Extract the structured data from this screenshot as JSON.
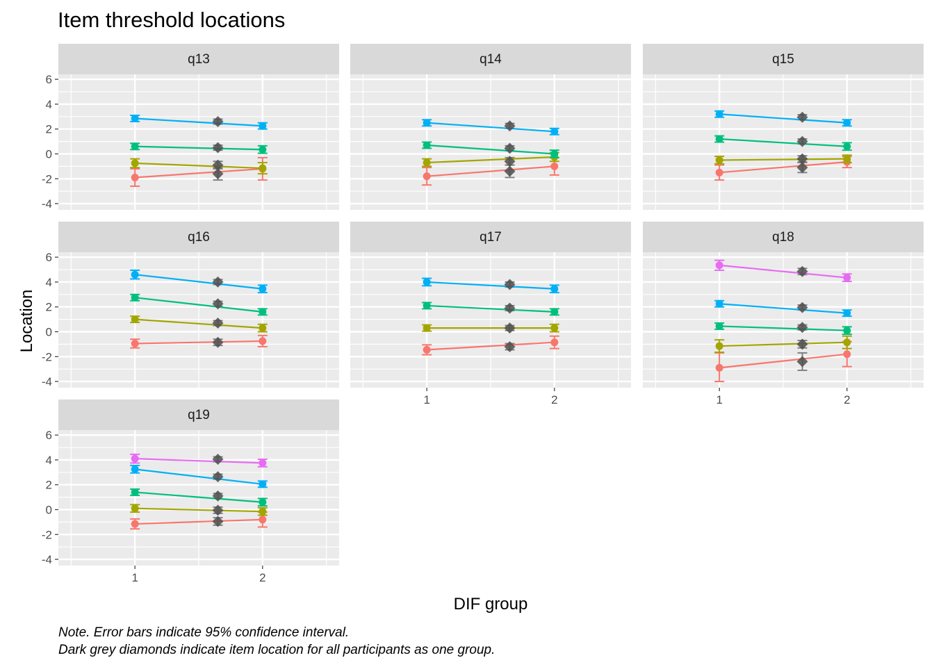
{
  "chart_data": {
    "type": "line",
    "title": "Item threshold locations",
    "xlabel": "DIF group",
    "ylabel": "Location",
    "x_ticks": [
      "1",
      "2"
    ],
    "x_range": [
      0.4,
      2.6
    ],
    "y_ticks": [
      -4,
      -2,
      0,
      2,
      4,
      6
    ],
    "ylim": [
      -4.5,
      6.4
    ],
    "grid": true,
    "legend": "none",
    "caption": [
      "Note. Error bars indicate 95% confidence interval.",
      "Dark grey diamonds indicate item location for all participants as one group."
    ],
    "threshold_colors": [
      "#F8766D",
      "#A3A500",
      "#00BF7D",
      "#00B0F6",
      "#E76BF3"
    ],
    "overall_color": "#4D4D4D",
    "panels": [
      {
        "name": "q13",
        "thresholds": [
          {
            "g1": -1.9,
            "g1_lo": -2.6,
            "g1_hi": -1.2,
            "g2": -1.2,
            "g2_lo": -2.1,
            "g2_hi": -0.3,
            "overall": -1.6,
            "overall_lo": -2.1,
            "overall_hi": -1.1
          },
          {
            "g1": -0.75,
            "g1_lo": -1.1,
            "g1_hi": -0.4,
            "g2": -1.15,
            "g2_lo": -1.6,
            "g2_hi": -0.7,
            "overall": -0.9,
            "overall_lo": -1.2,
            "overall_hi": -0.6
          },
          {
            "g1": 0.6,
            "g1_lo": 0.35,
            "g1_hi": 0.85,
            "g2": 0.35,
            "g2_lo": 0.05,
            "g2_hi": 0.65,
            "overall": 0.5,
            "overall_lo": 0.3,
            "overall_hi": 0.7
          },
          {
            "g1": 2.85,
            "g1_lo": 2.6,
            "g1_hi": 3.1,
            "g2": 2.25,
            "g2_lo": 2.0,
            "g2_hi": 2.5,
            "overall": 2.6,
            "overall_lo": 2.4,
            "overall_hi": 2.8
          }
        ]
      },
      {
        "name": "q14",
        "thresholds": [
          {
            "g1": -1.8,
            "g1_lo": -2.5,
            "g1_hi": -1.1,
            "g2": -1.0,
            "g2_lo": -1.7,
            "g2_hi": -0.3,
            "overall": -1.4,
            "overall_lo": -1.9,
            "overall_hi": -0.9
          },
          {
            "g1": -0.7,
            "g1_lo": -1.0,
            "g1_hi": -0.4,
            "g2": -0.25,
            "g2_lo": -0.6,
            "g2_hi": 0.1,
            "overall": -0.6,
            "overall_lo": -0.9,
            "overall_hi": -0.3
          },
          {
            "g1": 0.7,
            "g1_lo": 0.45,
            "g1_hi": 0.95,
            "g2": 0.0,
            "g2_lo": -0.3,
            "g2_hi": 0.3,
            "overall": 0.45,
            "overall_lo": 0.25,
            "overall_hi": 0.65
          },
          {
            "g1": 2.5,
            "g1_lo": 2.25,
            "g1_hi": 2.75,
            "g2": 1.8,
            "g2_lo": 1.55,
            "g2_hi": 2.05,
            "overall": 2.25,
            "overall_lo": 2.05,
            "overall_hi": 2.45
          }
        ]
      },
      {
        "name": "q15",
        "thresholds": [
          {
            "g1": -1.5,
            "g1_lo": -2.1,
            "g1_hi": -0.9,
            "g2": -0.65,
            "g2_lo": -1.1,
            "g2_hi": -0.2,
            "overall": -1.1,
            "overall_lo": -1.5,
            "overall_hi": -0.7
          },
          {
            "g1": -0.5,
            "g1_lo": -0.8,
            "g1_hi": -0.2,
            "g2": -0.4,
            "g2_lo": -0.7,
            "g2_hi": -0.1,
            "overall": -0.4,
            "overall_lo": -0.65,
            "overall_hi": -0.15
          },
          {
            "g1": 1.2,
            "g1_lo": 0.95,
            "g1_hi": 1.45,
            "g2": 0.6,
            "g2_lo": 0.3,
            "g2_hi": 0.9,
            "overall": 1.0,
            "overall_lo": 0.8,
            "overall_hi": 1.2
          },
          {
            "g1": 3.2,
            "g1_lo": 2.95,
            "g1_hi": 3.45,
            "g2": 2.5,
            "g2_lo": 2.25,
            "g2_hi": 2.75,
            "overall": 2.95,
            "overall_lo": 2.75,
            "overall_hi": 3.15
          }
        ]
      },
      {
        "name": "q16",
        "thresholds": [
          {
            "g1": -0.95,
            "g1_lo": -1.3,
            "g1_hi": -0.6,
            "g2": -0.75,
            "g2_lo": -1.2,
            "g2_hi": -0.3,
            "overall": -0.85,
            "overall_lo": -1.1,
            "overall_hi": -0.6
          },
          {
            "g1": 1.0,
            "g1_lo": 0.75,
            "g1_hi": 1.25,
            "g2": 0.3,
            "g2_lo": 0.0,
            "g2_hi": 0.6,
            "overall": 0.7,
            "overall_lo": 0.5,
            "overall_hi": 0.9
          },
          {
            "g1": 2.75,
            "g1_lo": 2.5,
            "g1_hi": 3.0,
            "g2": 1.6,
            "g2_lo": 1.35,
            "g2_hi": 1.85,
            "overall": 2.25,
            "overall_lo": 2.05,
            "overall_hi": 2.45
          },
          {
            "g1": 4.6,
            "g1_lo": 4.25,
            "g1_hi": 4.95,
            "g2": 3.45,
            "g2_lo": 3.15,
            "g2_hi": 3.75,
            "overall": 4.0,
            "overall_lo": 3.8,
            "overall_hi": 4.2
          }
        ]
      },
      {
        "name": "q17",
        "thresholds": [
          {
            "g1": -1.45,
            "g1_lo": -1.85,
            "g1_hi": -1.05,
            "g2": -0.85,
            "g2_lo": -1.35,
            "g2_hi": -0.35,
            "overall": -1.2,
            "overall_lo": -1.45,
            "overall_hi": -0.95
          },
          {
            "g1": 0.3,
            "g1_lo": 0.05,
            "g1_hi": 0.55,
            "g2": 0.3,
            "g2_lo": 0.0,
            "g2_hi": 0.6,
            "overall": 0.3,
            "overall_lo": 0.1,
            "overall_hi": 0.5
          },
          {
            "g1": 2.1,
            "g1_lo": 1.85,
            "g1_hi": 2.35,
            "g2": 1.6,
            "g2_lo": 1.35,
            "g2_hi": 1.85,
            "overall": 1.9,
            "overall_lo": 1.7,
            "overall_hi": 2.1
          },
          {
            "g1": 4.0,
            "g1_lo": 3.7,
            "g1_hi": 4.3,
            "g2": 3.45,
            "g2_lo": 3.15,
            "g2_hi": 3.75,
            "overall": 3.8,
            "overall_lo": 3.6,
            "overall_hi": 4.0
          }
        ]
      },
      {
        "name": "q18",
        "thresholds": [
          {
            "g1": -2.9,
            "g1_lo": -4.0,
            "g1_hi": -1.7,
            "g2": -1.8,
            "g2_lo": -2.8,
            "g2_hi": -0.8,
            "overall": -2.4,
            "overall_lo": -3.1,
            "overall_hi": -1.7
          },
          {
            "g1": -1.15,
            "g1_lo": -1.65,
            "g1_hi": -0.65,
            "g2": -0.85,
            "g2_lo": -1.35,
            "g2_hi": -0.35,
            "overall": -1.0,
            "overall_lo": -1.3,
            "overall_hi": -0.7
          },
          {
            "g1": 0.45,
            "g1_lo": 0.2,
            "g1_hi": 0.7,
            "g2": 0.1,
            "g2_lo": -0.2,
            "g2_hi": 0.4,
            "overall": 0.35,
            "overall_lo": 0.15,
            "overall_hi": 0.55
          },
          {
            "g1": 2.25,
            "g1_lo": 2.0,
            "g1_hi": 2.5,
            "g2": 1.5,
            "g2_lo": 1.25,
            "g2_hi": 1.75,
            "overall": 1.95,
            "overall_lo": 1.75,
            "overall_hi": 2.15
          },
          {
            "g1": 5.35,
            "g1_lo": 4.95,
            "g1_hi": 5.75,
            "g2": 4.35,
            "g2_lo": 4.05,
            "g2_hi": 4.65,
            "overall": 4.85,
            "overall_lo": 4.6,
            "overall_hi": 5.1
          }
        ]
      },
      {
        "name": "q19",
        "thresholds": [
          {
            "g1": -1.15,
            "g1_lo": -1.55,
            "g1_hi": -0.75,
            "g2": -0.8,
            "g2_lo": -1.4,
            "g2_hi": -0.2,
            "overall": -0.95,
            "overall_lo": -1.25,
            "overall_hi": -0.65
          },
          {
            "g1": 0.1,
            "g1_lo": -0.2,
            "g1_hi": 0.4,
            "g2": -0.15,
            "g2_lo": -0.45,
            "g2_hi": 0.15,
            "overall": -0.05,
            "overall_lo": -0.3,
            "overall_hi": 0.2
          },
          {
            "g1": 1.4,
            "g1_lo": 1.15,
            "g1_hi": 1.65,
            "g2": 0.6,
            "g2_lo": 0.3,
            "g2_hi": 0.9,
            "overall": 1.1,
            "overall_lo": 0.9,
            "overall_hi": 1.3
          },
          {
            "g1": 3.25,
            "g1_lo": 2.95,
            "g1_hi": 3.55,
            "g2": 2.05,
            "g2_lo": 1.8,
            "g2_hi": 2.3,
            "overall": 2.65,
            "overall_lo": 2.45,
            "overall_hi": 2.85
          },
          {
            "g1": 4.1,
            "g1_lo": 3.75,
            "g1_hi": 4.45,
            "g2": 3.75,
            "g2_lo": 3.45,
            "g2_hi": 4.05,
            "overall": 4.05,
            "overall_lo": 3.85,
            "overall_hi": 4.25
          }
        ]
      }
    ]
  }
}
